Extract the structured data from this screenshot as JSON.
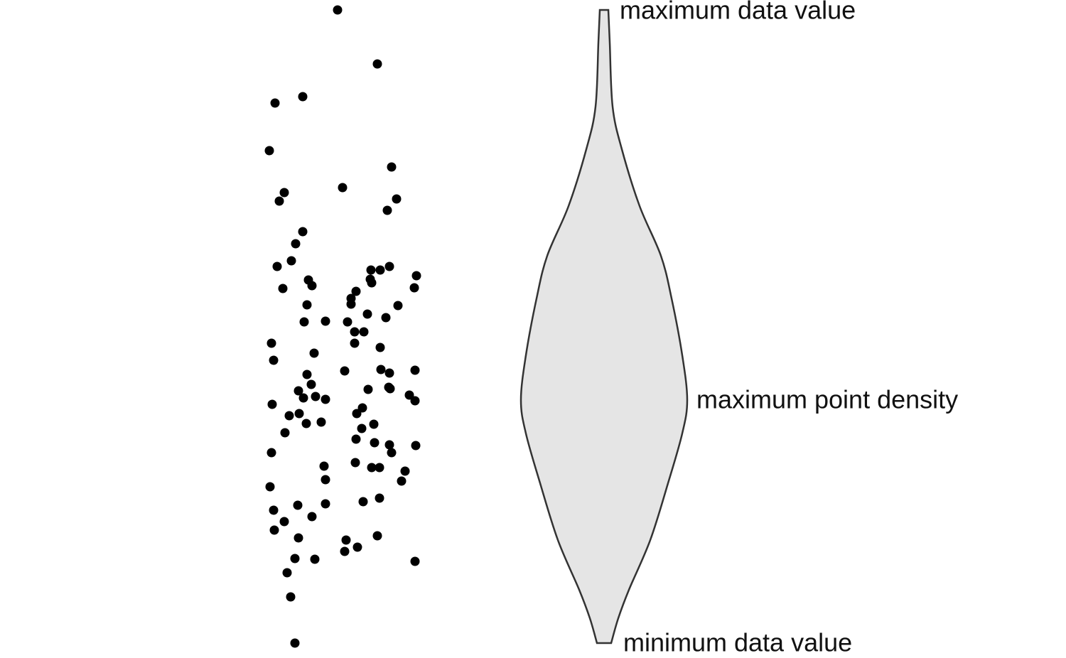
{
  "annotations": {
    "max_value": "maximum data value",
    "max_density": "maximum point density",
    "min_value": "minimum data value"
  }
}
